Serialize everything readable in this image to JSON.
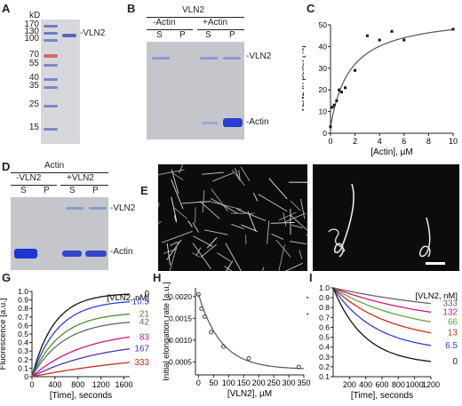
{
  "panels": {
    "A": {
      "label": "A",
      "unit": "kD",
      "markers": [
        "170",
        "130",
        "100",
        "70",
        "55",
        "40",
        "35",
        "25",
        "15"
      ],
      "band_label": "-VLN2"
    },
    "B": {
      "label": "B",
      "title": "VLN2",
      "groups": [
        "-Actin",
        "+Actin"
      ],
      "lanes": [
        "S",
        "P",
        "S",
        "P"
      ],
      "band_top": "-VLN2",
      "band_bottom": "-Actin"
    },
    "C": {
      "label": "C"
    },
    "D": {
      "label": "D",
      "title": "Actin",
      "groups": [
        "-VLN2",
        "+VLN2"
      ],
      "lanes": [
        "S",
        "P",
        "S",
        "P"
      ],
      "band_top": "-VLN2",
      "band_bottom": "-Actin"
    },
    "E": {
      "label": "E"
    },
    "F": {
      "label": "F"
    },
    "G": {
      "label": "G"
    },
    "H": {
      "label": "H"
    },
    "I": {
      "label": "I"
    }
  },
  "chart_data": [
    {
      "id": "C",
      "type": "scatter",
      "xlabel": "[Actin], µM",
      "ylabel": "VLN2 in pellet [%]",
      "xlim": [
        0,
        10
      ],
      "ylim": [
        0,
        50
      ],
      "xticks": [
        "0",
        "2",
        "4",
        "6",
        "8",
        "10"
      ],
      "yticks": [
        "0",
        "10",
        "20",
        "30",
        "40",
        "50"
      ],
      "points": [
        [
          0,
          3
        ],
        [
          0.15,
          12
        ],
        [
          0.3,
          13
        ],
        [
          0.5,
          15
        ],
        [
          0.7,
          20
        ],
        [
          0.9,
          19
        ],
        [
          1.2,
          21
        ],
        [
          2,
          29
        ],
        [
          3,
          45
        ],
        [
          4,
          43
        ],
        [
          5,
          47
        ],
        [
          6,
          43
        ],
        [
          10,
          48
        ]
      ],
      "fit": true
    },
    {
      "id": "G",
      "type": "line",
      "xlabel": "[Time], seconds",
      "ylabel": "Fluorescence [a.u.]",
      "xlim": [
        0,
        1700
      ],
      "ylim": [
        0,
        1.0
      ],
      "xticks": [
        "0",
        "400",
        "800",
        "1200",
        "1600"
      ],
      "yticks": [
        "0",
        "0.1",
        "0.2",
        "0.3",
        "0.4",
        "0.5",
        "0.6",
        "0.7",
        "0.8",
        "0.9",
        "1.0"
      ],
      "legend_title": "[VLN2, nM]",
      "series": [
        {
          "name": "0",
          "color": "#111111",
          "plateau": 0.98,
          "rate": 0.0026
        },
        {
          "name": "10.5",
          "color": "#2a3fd6",
          "plateau": 0.9,
          "rate": 0.0022
        },
        {
          "name": "21",
          "color": "#4a8f2a",
          "plateau": 0.76,
          "rate": 0.002
        },
        {
          "name": "42",
          "color": "#666666",
          "plateau": 0.67,
          "rate": 0.0018
        },
        {
          "name": "83",
          "color": "#d4148a",
          "plateau": 0.55,
          "rate": 0.0011
        },
        {
          "name": "167",
          "color": "#4a33c4",
          "plateau": 0.44,
          "rate": 0.0008
        },
        {
          "name": "333",
          "color": "#cc2a1a",
          "plateau": 0.34,
          "rate": 0.0004
        }
      ]
    },
    {
      "id": "H",
      "type": "scatter",
      "xlabel": "[VLN2], µM",
      "ylabel": "Initial elongation rate [a.u.]",
      "xlim": [
        -10,
        350
      ],
      "ylim": [
        0.0002,
        0.0022
      ],
      "xticks": [
        "0",
        "50",
        "100",
        "150",
        "200",
        "250",
        "300",
        "350"
      ],
      "yticks": [
        "0.0005",
        "0.0010",
        "0.0015",
        "0.0020"
      ],
      "points": [
        [
          0,
          0.00205
        ],
        [
          10,
          0.00172
        ],
        [
          21,
          0.00154
        ],
        [
          42,
          0.00118
        ],
        [
          83,
          0.00085
        ],
        [
          167,
          0.00058
        ],
        [
          333,
          0.00038
        ]
      ],
      "fit": true
    },
    {
      "id": "I",
      "type": "line",
      "xlabel": "[Time], seconds",
      "ylabel": "Fluorescence [a.u.]",
      "xlim": [
        0,
        1200
      ],
      "ylim": [
        0.1,
        1.0
      ],
      "xticks": [
        "200",
        "400",
        "600",
        "800",
        "1000",
        "1200"
      ],
      "yticks": [
        "0.1",
        "0.2",
        "0.3",
        "0.4",
        "0.5",
        "0.6",
        "0.7",
        "0.8",
        "0.9",
        "1.0"
      ],
      "legend_title": "[VLN2, nM]",
      "series": [
        {
          "name": "333",
          "color": "#666666",
          "end": 0.69,
          "k": 0.0006
        },
        {
          "name": "132",
          "color": "#d4148a",
          "end": 0.6,
          "k": 0.0008
        },
        {
          "name": "66",
          "color": "#5aa83a",
          "end": 0.53,
          "k": 0.0011
        },
        {
          "name": "13",
          "color": "#cc2a1a",
          "end": 0.44,
          "k": 0.0014
        },
        {
          "name": "6.5",
          "color": "#2a3fd6",
          "end": 0.35,
          "k": 0.0019
        },
        {
          "name": "0",
          "color": "#111111",
          "end": 0.22,
          "k": 0.0026
        }
      ]
    }
  ]
}
